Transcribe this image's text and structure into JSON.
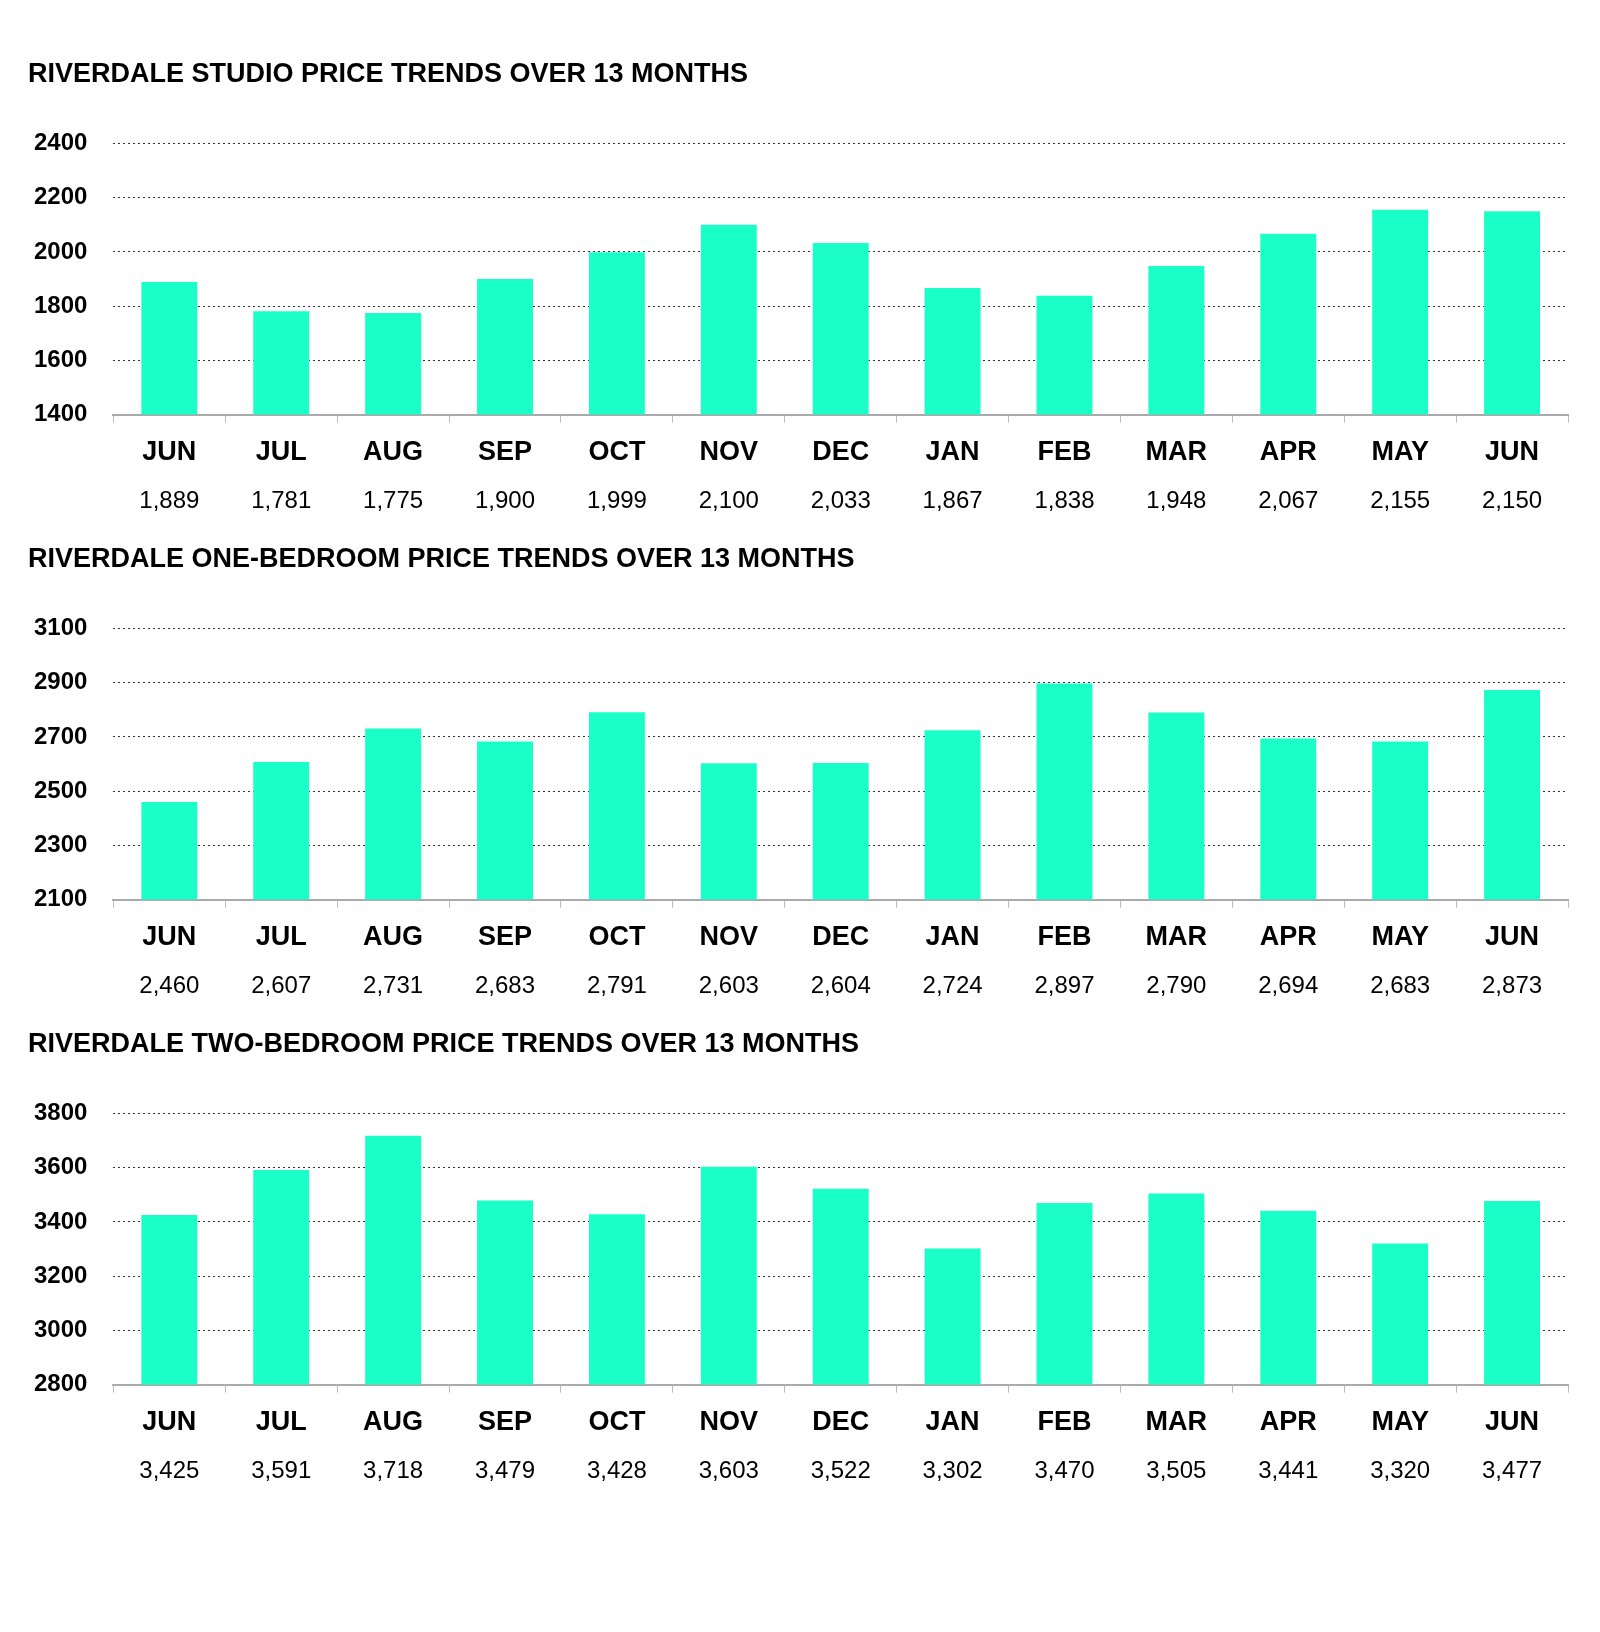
{
  "chart_data": [
    {
      "type": "bar",
      "title": "RIVERDALE STUDIO PRICE TRENDS OVER 13 MONTHS",
      "categories": [
        "JUN",
        "JUL",
        "AUG",
        "SEP",
        "OCT",
        "NOV",
        "DEC",
        "JAN",
        "FEB",
        "MAR",
        "APR",
        "MAY",
        "JUN"
      ],
      "values": [
        1889,
        1781,
        1775,
        1900,
        1999,
        2100,
        2033,
        1867,
        1838,
        1948,
        2067,
        2155,
        2150
      ],
      "value_labels": [
        "1,889",
        "1,781",
        "1,775",
        "1,900",
        "1,999",
        "2,100",
        "2,033",
        "1,867",
        "1,838",
        "1,948",
        "2,067",
        "2,155",
        "2,150"
      ],
      "color": "#1affc8",
      "ylim": [
        1400,
        2400
      ],
      "yticks": [
        1400,
        1600,
        1800,
        2000,
        2200,
        2400
      ],
      "grid": "y"
    },
    {
      "type": "bar",
      "title": "RIVERDALE ONE-BEDROOM PRICE TRENDS OVER 13 MONTHS",
      "categories": [
        "JUN",
        "JUL",
        "AUG",
        "SEP",
        "OCT",
        "NOV",
        "DEC",
        "JAN",
        "FEB",
        "MAR",
        "APR",
        "MAY",
        "JUN"
      ],
      "values": [
        2460,
        2607,
        2731,
        2683,
        2791,
        2603,
        2604,
        2724,
        2897,
        2790,
        2694,
        2683,
        2873
      ],
      "value_labels": [
        "2,460",
        "2,607",
        "2,731",
        "2,683",
        "2,791",
        "2,603",
        "2,604",
        "2,724",
        "2,897",
        "2,790",
        "2,694",
        "2,683",
        "2,873"
      ],
      "color": "#1affc8",
      "ylim": [
        2100,
        3100
      ],
      "yticks": [
        2100,
        2300,
        2500,
        2700,
        2900,
        3100
      ],
      "grid": "y"
    },
    {
      "type": "bar",
      "title": "RIVERDALE TWO-BEDROOM PRICE TRENDS OVER 13 MONTHS",
      "categories": [
        "JUN",
        "JUL",
        "AUG",
        "SEP",
        "OCT",
        "NOV",
        "DEC",
        "JAN",
        "FEB",
        "MAR",
        "APR",
        "MAY",
        "JUN"
      ],
      "values": [
        3425,
        3591,
        3718,
        3479,
        3428,
        3603,
        3522,
        3302,
        3470,
        3505,
        3441,
        3320,
        3477
      ],
      "value_labels": [
        "3,425",
        "3,591",
        "3,718",
        "3,479",
        "3,428",
        "3,603",
        "3,522",
        "3,302",
        "3,470",
        "3,505",
        "3,441",
        "3,320",
        "3,477"
      ],
      "color": "#1affc8",
      "ylim": [
        2800,
        3800
      ],
      "yticks": [
        2800,
        3000,
        3200,
        3400,
        3600,
        3800
      ],
      "grid": "y"
    }
  ]
}
